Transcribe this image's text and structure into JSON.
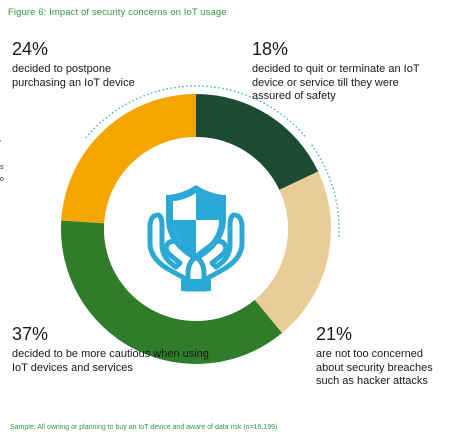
{
  "figure": {
    "title": "Figure 6: Impact of security concerns on IoT usage",
    "sample_note": "Sample: All owning or planning to buy an IoT device and aware of data risk (n=16,199)"
  },
  "edge_marks": [
    "‘",
    "s",
    "o"
  ],
  "chart_data": {
    "type": "pie",
    "donut": true,
    "categories": [
      "decided to quit or terminate an IoT device or service till they were assured of safety",
      "are not too concerned about security breaches such as hacker attacks",
      "decided to be more cautious when using IoT devices and services",
      "decided to postpone purchasing an IoT device"
    ],
    "values": [
      18,
      21,
      37,
      24
    ],
    "colors": [
      "#1c4a33",
      "#e9cc96",
      "#2f7d2b",
      "#f5a500"
    ],
    "labels": [
      "18%",
      "21%",
      "37%",
      "24%"
    ],
    "dotted_ring_color": "#38b3bd",
    "center_icon": "shield-in-hands-icon",
    "icon_color": "#2aa8d6"
  },
  "callouts": {
    "tl": {
      "pct": "24%",
      "desc": "decided to postpone purchasing an IoT device"
    },
    "tr": {
      "pct": "18%",
      "desc": "decided to quit or terminate an IoT device or service till they were assured of safety"
    },
    "br": {
      "pct": "21%",
      "desc": "are not too concerned about security breaches such as hacker attacks"
    },
    "bl": {
      "pct": "37%",
      "desc": "decided to be more cautious when using IoT devices and services"
    }
  }
}
